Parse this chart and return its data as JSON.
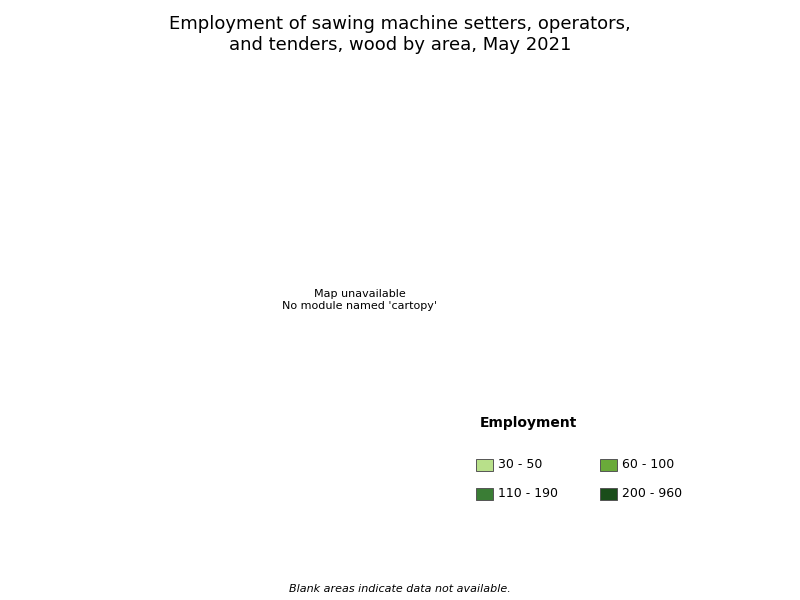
{
  "title_line1": "Employment of sawing machine setters, operators,",
  "title_line2": "and tenders, wood by area, May 2021",
  "title_fontsize": 13,
  "legend_title": "Employment",
  "legend_title_fontsize": 10,
  "legend_fontsize": 9,
  "legend_entries": [
    "30 - 50",
    "60 - 100",
    "110 - 190",
    "200 - 960"
  ],
  "legend_colors": [
    "#b8e08a",
    "#6aaa3a",
    "#3a7d35",
    "#1a4d1a"
  ],
  "no_data_color": "#ffffff",
  "blank_note": "Blank areas indicate data not available.",
  "blank_note_fontsize": 8,
  "background_color": "#ffffff",
  "border_color": "#1a1a1a",
  "border_linewidth": 0.3,
  "fig_width": 8.0,
  "fig_height": 6.0,
  "dpi": 100
}
